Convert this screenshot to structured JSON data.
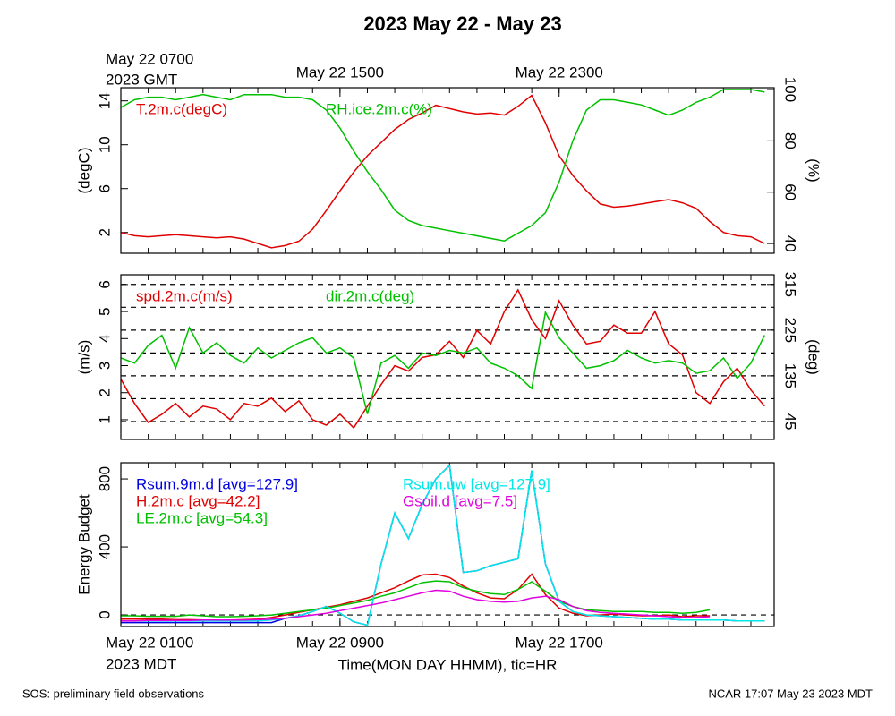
{
  "title": "2023 May 22 - May 23",
  "footer_left": "SOS: preliminary field observations",
  "footer_right": "NCAR 17:07 May 23 2023 MDT",
  "chart_data": [
    {
      "type": "line",
      "xlim": [
        1,
        24.85
      ],
      "minor_xtick_step": 1,
      "x2ticks": [
        {
          "value": 1,
          "label": "May 22 0700"
        },
        {
          "value": 9,
          "label": "May 22 1500"
        },
        {
          "value": 17,
          "label": "May 22 2300"
        }
      ],
      "x2_note": "2023 GMT",
      "ylabel": "(degC)",
      "ylim": [
        0.1,
        15.2
      ],
      "yticks": [
        2,
        6,
        10,
        14
      ],
      "y2label": "(%)",
      "y2lim": [
        36.2,
        100.7
      ],
      "y2ticks": [
        40,
        60,
        80,
        100
      ],
      "x": [
        1,
        1.5,
        2,
        2.5,
        3,
        3.5,
        4,
        4.5,
        5,
        5.5,
        6,
        6.5,
        7,
        7.5,
        8,
        8.5,
        9,
        9.5,
        10,
        10.5,
        11,
        11.5,
        12,
        12.5,
        13,
        13.5,
        14,
        14.5,
        15,
        15.5,
        16,
        16.5,
        17,
        17.5,
        18,
        18.5,
        19,
        19.5,
        20,
        20.5,
        21,
        21.5,
        22,
        22.5,
        23,
        23.5,
        24,
        24.5
      ],
      "series": [
        {
          "name": "T.2m.c(degC)",
          "color": "#e00000",
          "axis": "y",
          "values": [
            2.0,
            1.7,
            1.6,
            1.7,
            1.8,
            1.7,
            1.6,
            1.5,
            1.6,
            1.4,
            1.0,
            0.6,
            0.8,
            1.2,
            2.3,
            4.0,
            5.8,
            7.5,
            9.0,
            10.2,
            11.4,
            12.3,
            12.9,
            13.6,
            13.3,
            13.0,
            12.8,
            12.9,
            12.7,
            13.5,
            14.5,
            12.0,
            9.0,
            7.2,
            5.8,
            4.6,
            4.3,
            4.4,
            4.6,
            4.8,
            5.0,
            4.7,
            4.2,
            3.0,
            2.0,
            1.7,
            1.6,
            1.0
          ]
        },
        {
          "name": "RH.ice.2m.c(%)",
          "color": "#00c000",
          "axis": "y2",
          "values": [
            93,
            96,
            97,
            97,
            96,
            97,
            98,
            97,
            96,
            98,
            98,
            98,
            97,
            97,
            96,
            92,
            85,
            76,
            68,
            61,
            53,
            49,
            47,
            46,
            45,
            44,
            43,
            42,
            41,
            44,
            47,
            52,
            64,
            80,
            92,
            96,
            96,
            95,
            94,
            92,
            90,
            92,
            95,
            97,
            100,
            100,
            100,
            99
          ]
        }
      ]
    },
    {
      "type": "line",
      "xlim": [
        1,
        24.85
      ],
      "minor_xtick_step": 1,
      "ylabel": "(m/s)",
      "ylim": [
        0.27,
        6.36
      ],
      "yticks": [
        1,
        2,
        3,
        4,
        5,
        6
      ],
      "y2label": "(deg)",
      "y2lim": [
        9.7,
        334
      ],
      "y2ticks": [
        45,
        135,
        225,
        315
      ],
      "y2grid": [
        45,
        90,
        135,
        180,
        225,
        270,
        315
      ],
      "x": [
        1,
        1.5,
        2,
        2.5,
        3,
        3.5,
        4,
        4.5,
        5,
        5.5,
        6,
        6.5,
        7,
        7.5,
        8,
        8.5,
        9,
        9.5,
        10,
        10.5,
        11,
        11.5,
        12,
        12.5,
        13,
        13.5,
        14,
        14.5,
        15,
        15.5,
        16,
        16.5,
        17,
        17.5,
        18,
        18.5,
        19,
        19.5,
        20,
        20.5,
        21,
        21.5,
        22,
        22.5,
        23,
        23.5,
        24,
        24.5
      ],
      "series": [
        {
          "name": "spd.2m.c(m/s)",
          "color": "#e00000",
          "axis": "y",
          "values": [
            2.5,
            1.6,
            0.9,
            1.2,
            1.6,
            1.1,
            1.5,
            1.4,
            1.0,
            1.6,
            1.5,
            1.8,
            1.3,
            1.7,
            1.0,
            0.8,
            1.2,
            0.7,
            1.5,
            2.3,
            3.0,
            2.8,
            3.3,
            3.4,
            3.9,
            3.3,
            4.3,
            3.8,
            5.0,
            5.8,
            4.7,
            4.0,
            5.4,
            4.5,
            3.8,
            3.9,
            4.5,
            4.2,
            4.2,
            5.0,
            3.8,
            3.4,
            2.0,
            1.6,
            2.4,
            2.9,
            2.1,
            1.5
          ]
        },
        {
          "name": "dir.2m.c(deg)",
          "color": "#00c000",
          "axis": "y2",
          "values": [
            170,
            160,
            195,
            215,
            150,
            230,
            180,
            200,
            175,
            160,
            190,
            170,
            185,
            200,
            210,
            180,
            190,
            170,
            60,
            160,
            175,
            150,
            180,
            175,
            185,
            180,
            190,
            160,
            150,
            135,
            110,
            260,
            210,
            180,
            150,
            155,
            165,
            185,
            170,
            160,
            165,
            160,
            140,
            145,
            170,
            130,
            160,
            215
          ]
        }
      ]
    },
    {
      "type": "line",
      "xlim": [
        1,
        24.85
      ],
      "minor_xtick_step": 1,
      "xticks": [
        {
          "value": 1,
          "label": "May 22 0100"
        },
        {
          "value": 9,
          "label": "May 22 0900"
        },
        {
          "value": 17,
          "label": "May 22 1700"
        }
      ],
      "x_note": "2023 MDT",
      "xlabel": "Time(MON DAY HHMM), tic=HR",
      "ylabel": "Energy Budget",
      "ylim": [
        -68,
        895
      ],
      "yticks": [
        0,
        400,
        800
      ],
      "zero_line": true,
      "x": [
        1,
        1.5,
        2,
        2.5,
        3,
        3.5,
        4,
        4.5,
        5,
        5.5,
        6,
        6.5,
        7,
        7.5,
        8,
        8.5,
        9,
        9.5,
        10,
        10.5,
        11,
        11.5,
        12,
        12.5,
        13,
        13.5,
        14,
        14.5,
        15,
        15.5,
        16,
        16.5,
        17,
        17.5,
        18,
        18.5,
        19,
        19.5,
        20,
        20.5,
        21,
        21.5,
        22,
        22.5,
        23,
        23.5,
        24,
        24.5
      ],
      "series": [
        {
          "name": "Rsum.9m.d [avg=127.9]",
          "color": "#0000e0",
          "axis": "y",
          "values": [
            -45,
            -45,
            -45,
            -45,
            -45,
            -45,
            -45,
            -45,
            -45,
            -45,
            -45,
            -45,
            -20,
            -5,
            20,
            50,
            10,
            -40,
            -60,
            300,
            600,
            450,
            650,
            800,
            880,
            250,
            260,
            290,
            310,
            330,
            850,
            300,
            80,
            20,
            0,
            -5,
            -10,
            -15,
            -20,
            -25,
            -25,
            -30,
            -30,
            -30,
            -30,
            -35,
            -35,
            -35
          ]
        },
        {
          "name": "H.2m.c [avg=42.2]",
          "color": "#e00000",
          "axis": "y",
          "values": [
            -25,
            -25,
            -25,
            -25,
            -28,
            -28,
            -30,
            -30,
            -30,
            -28,
            -25,
            -15,
            0,
            15,
            30,
            45,
            60,
            80,
            100,
            130,
            160,
            200,
            235,
            240,
            220,
            170,
            130,
            100,
            95,
            150,
            240,
            120,
            40,
            10,
            -5,
            0,
            5,
            0,
            -5,
            -5,
            0,
            -10,
            -5,
            -5,
            null,
            null,
            null,
            null
          ]
        },
        {
          "name": "LE.2m.c [avg=54.3]",
          "color": "#00c000",
          "axis": "y",
          "values": [
            -5,
            -5,
            -8,
            -8,
            -8,
            0,
            -5,
            -10,
            -10,
            -8,
            -5,
            0,
            10,
            20,
            30,
            40,
            55,
            70,
            85,
            110,
            130,
            160,
            190,
            200,
            195,
            160,
            140,
            125,
            120,
            150,
            195,
            140,
            80,
            50,
            30,
            25,
            20,
            20,
            20,
            15,
            15,
            10,
            15,
            30,
            null,
            null,
            null,
            null
          ]
        },
        {
          "name": "Rsum.uw [avg=127.9]",
          "color": "#00e8e8",
          "axis": "y",
          "values": [
            -35,
            -35,
            -35,
            -35,
            -35,
            -35,
            -35,
            -35,
            -35,
            -35,
            -35,
            -30,
            -20,
            -5,
            20,
            50,
            10,
            -40,
            -60,
            300,
            600,
            450,
            650,
            800,
            880,
            250,
            260,
            290,
            310,
            330,
            850,
            300,
            80,
            20,
            0,
            -5,
            -10,
            -15,
            -20,
            -25,
            -25,
            -30,
            -30,
            -30,
            -30,
            -35,
            -35,
            -35
          ]
        },
        {
          "name": "Gsoil.d [avg=7.5]",
          "color": "#e000e0",
          "axis": "y",
          "values": [
            -35,
            -35,
            -33,
            -33,
            -32,
            -32,
            -30,
            -30,
            -30,
            -30,
            -28,
            -25,
            -20,
            -10,
            0,
            10,
            25,
            40,
            55,
            70,
            90,
            110,
            130,
            145,
            140,
            110,
            90,
            80,
            75,
            80,
            100,
            110,
            90,
            50,
            25,
            15,
            10,
            5,
            0,
            -5,
            -10,
            -15,
            -15,
            -10,
            null,
            null,
            null,
            null
          ]
        }
      ]
    }
  ]
}
